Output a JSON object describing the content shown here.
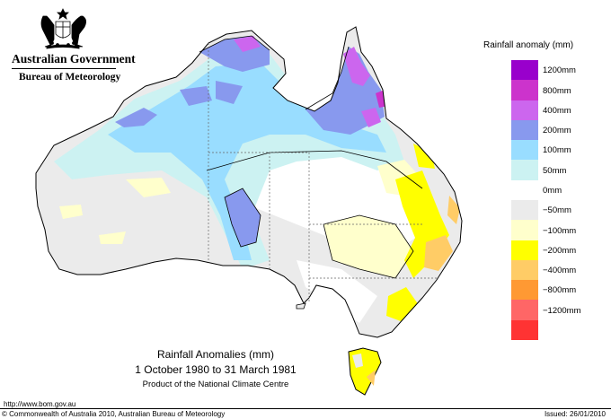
{
  "header": {
    "government": "Australian Government",
    "agency": "Bureau of Meteorology"
  },
  "legend": {
    "title": "Rainfall anomaly (mm)",
    "classes": [
      {
        "label": "1200mm",
        "color": "#9900cc"
      },
      {
        "label": "800mm",
        "color": "#cc33cc"
      },
      {
        "label": "400mm",
        "color": "#cc66ee"
      },
      {
        "label": "200mm",
        "color": "#8899ee"
      },
      {
        "label": "100mm",
        "color": "#99ddff"
      },
      {
        "label": "50mm",
        "color": "#ccf2f2"
      },
      {
        "label": "0mm",
        "color": "#ffffff"
      },
      {
        "label": "−50mm",
        "color": "#ebebeb"
      },
      {
        "label": "−100mm",
        "color": "#ffffcc"
      },
      {
        "label": "−200mm",
        "color": "#ffff00"
      },
      {
        "label": "−400mm",
        "color": "#ffcc66"
      },
      {
        "label": "−800mm",
        "color": "#ff9933"
      },
      {
        "label": "−1200mm",
        "color": "#ff6666"
      }
    ],
    "bottom_color": "#ff3333"
  },
  "map": {
    "title": "Rainfall Anomalies (mm)",
    "period": "1 October 1980 to 31 March 1981",
    "product": "Product of the National Climate Centre"
  },
  "footer": {
    "url": "http://www.bom.gov.au",
    "copyright": "© Commonwealth of Australia 2010, Australian Bureau of Meteorology",
    "issued": "Issued: 26/01/2010"
  }
}
